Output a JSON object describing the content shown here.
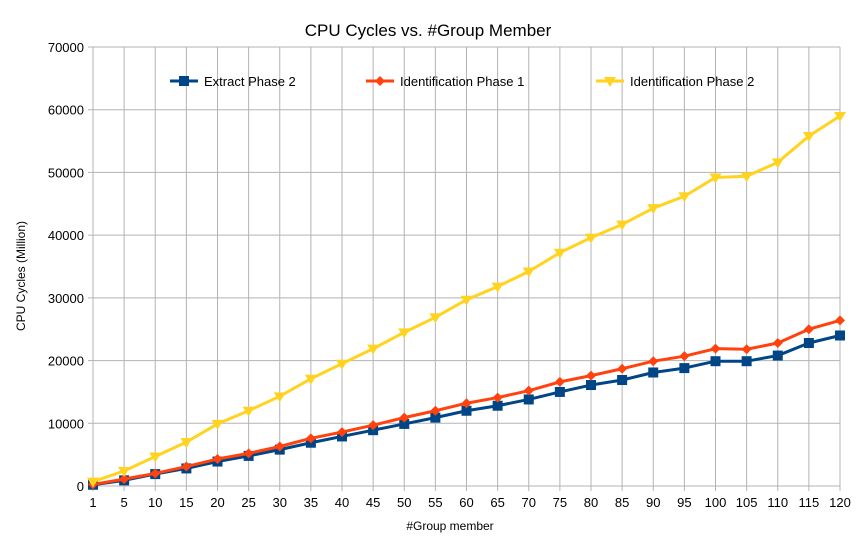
{
  "chart_data": {
    "type": "line",
    "title": "CPU Cycles vs. #Group Member",
    "xlabel": "#Group member",
    "ylabel": "CPU Cycles (Million)",
    "ylim": [
      0,
      70000
    ],
    "y_ticks": [
      "0",
      "10000",
      "20000",
      "30000",
      "40000",
      "50000",
      "60000",
      "70000"
    ],
    "grid": true,
    "legend_position": "top",
    "categories": [
      "1",
      "5",
      "10",
      "15",
      "20",
      "25",
      "30",
      "35",
      "40",
      "45",
      "50",
      "55",
      "60",
      "65",
      "70",
      "75",
      "80",
      "85",
      "90",
      "95",
      "100",
      "105",
      "110",
      "115",
      "120"
    ],
    "series": [
      {
        "name": "Extract Phase 2",
        "color": "#004586",
        "marker": "square",
        "values": [
          200,
          900,
          1900,
          2800,
          3900,
          4800,
          5800,
          6900,
          7900,
          8900,
          9900,
          10900,
          12000,
          12800,
          13800,
          15000,
          16100,
          16900,
          18100,
          18800,
          19900,
          19900,
          20800,
          22800,
          24000
        ]
      },
      {
        "name": "Identification Phase 1",
        "color": "#ff420e",
        "marker": "diamond",
        "values": [
          250,
          1100,
          2000,
          3100,
          4300,
          5200,
          6300,
          7600,
          8600,
          9700,
          10900,
          12000,
          13200,
          14100,
          15200,
          16600,
          17600,
          18700,
          19900,
          20700,
          21900,
          21800,
          22800,
          25000,
          26400
        ]
      },
      {
        "name": "Identification Phase 2",
        "color": "#ffd320",
        "marker": "triangle",
        "values": [
          700,
          2400,
          4700,
          7000,
          9900,
          12000,
          14300,
          17100,
          19500,
          21900,
          24500,
          26900,
          29700,
          31800,
          34200,
          37200,
          39600,
          41700,
          44300,
          46200,
          49200,
          49400,
          51600,
          55800,
          59000
        ]
      }
    ]
  }
}
